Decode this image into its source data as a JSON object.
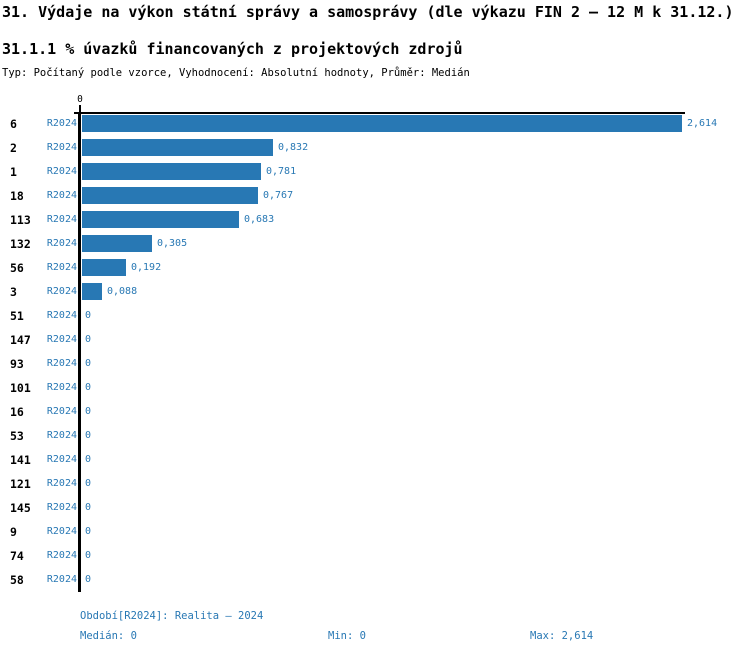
{
  "header": {
    "title": "31. Výdaje na výkon státní správy a samosprávy (dle výkazu FIN 2 – 12 M k 31.12.)",
    "subtitle": "31.1.1 % úvazků financovaných z projektových zdrojů",
    "meta": "Typ: Počítaný podle vzorce, Vyhodnocení: Absolutní hodnoty, Průměr: Medián"
  },
  "chart_data": {
    "type": "bar",
    "orientation": "horizontal",
    "title": "31.1.1 % úvazků financovaných z projektových zdrojů",
    "categories": [
      "6",
      "2",
      "1",
      "18",
      "113",
      "132",
      "56",
      "3",
      "51",
      "147",
      "93",
      "101",
      "16",
      "53",
      "141",
      "121",
      "145",
      "9",
      "74",
      "58"
    ],
    "series": [
      {
        "name": "R2024",
        "values": [
          2.614,
          0.832,
          0.781,
          0.767,
          0.683,
          0.305,
          0.192,
          0.088,
          0,
          0,
          0,
          0,
          0,
          0,
          0,
          0,
          0,
          0,
          0,
          0
        ],
        "value_labels": [
          "2,614",
          "0,832",
          "0,781",
          "0,767",
          "0,683",
          "0,305",
          "0,192",
          "0,088",
          "0",
          "0",
          "0",
          "0",
          "0",
          "0",
          "0",
          "0",
          "0",
          "0",
          "0",
          "0"
        ]
      }
    ],
    "series_label": "R2024",
    "xlim": [
      0,
      2.614
    ],
    "axis_ticks": [
      "0"
    ],
    "bar_color": "#2878b4",
    "grid": false,
    "legend_position": "none"
  },
  "footer": {
    "period": "Období[R2024]: Realita – 2024",
    "median": "Medián: 0",
    "min": "Min: 0",
    "max": "Max: 2,614"
  }
}
